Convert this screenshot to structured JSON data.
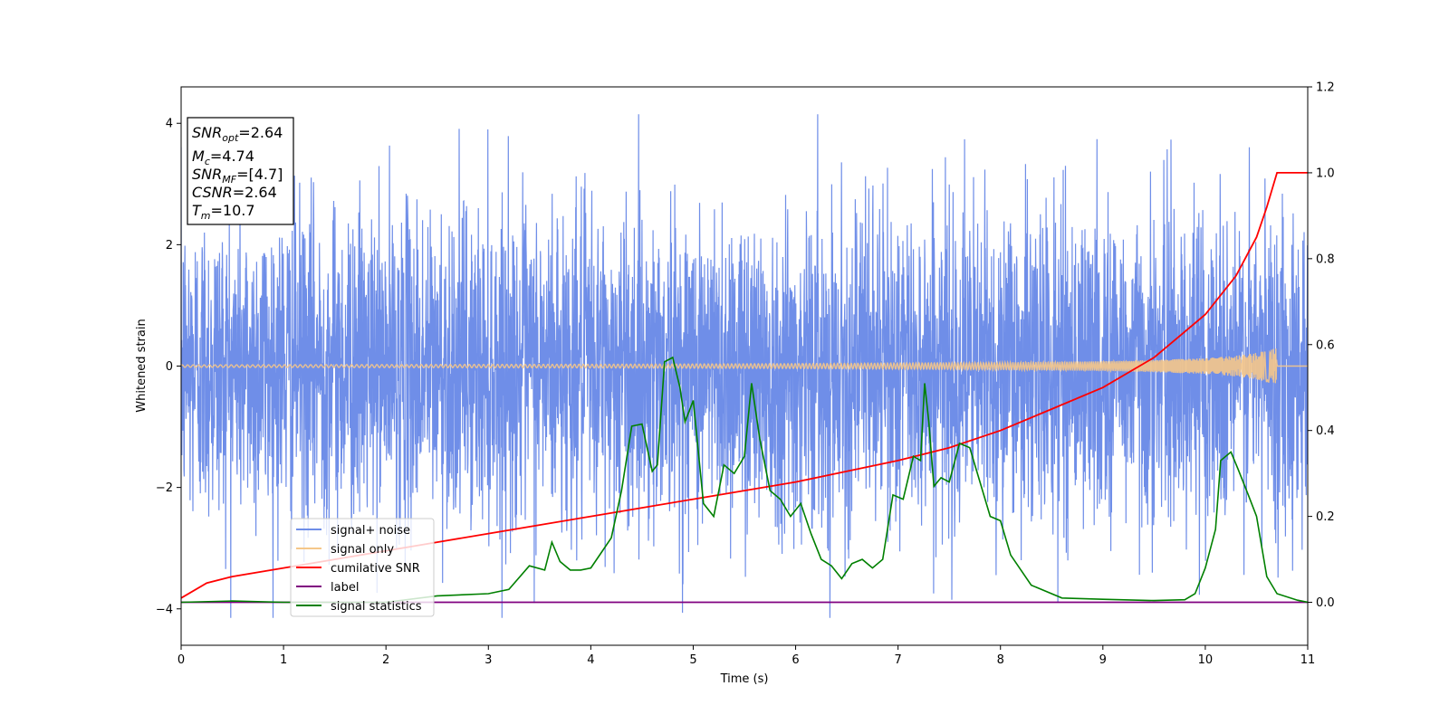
{
  "chart_data": {
    "type": "line",
    "title": "",
    "xlabel": "Time (s)",
    "ylabel": "Whitened strain",
    "y2label": "",
    "xlim": [
      0,
      11
    ],
    "ylim": [
      -4.6,
      4.6
    ],
    "y2lim": [
      -0.1,
      1.2
    ],
    "xticks": [
      0,
      1,
      2,
      3,
      4,
      5,
      6,
      7,
      8,
      9,
      10,
      11
    ],
    "yticks": [
      -4,
      -2,
      0,
      2,
      4
    ],
    "y2ticks": [
      0.0,
      0.2,
      0.4,
      0.6,
      0.8,
      1.0,
      1.2
    ],
    "xtick_labels": [
      "0",
      "1",
      "2",
      "3",
      "4",
      "5",
      "6",
      "7",
      "8",
      "9",
      "10",
      "11"
    ],
    "ytick_labels": [
      "−4",
      "−2",
      "0",
      "2",
      "4"
    ],
    "y2tick_labels": [
      "0.0",
      "0.2",
      "0.4",
      "0.6",
      "0.8",
      "1.0",
      "1.2"
    ],
    "grid": false,
    "legend_position": "lower-left",
    "noise": {
      "amplitude": 1.3,
      "peak_max": 4.15,
      "peak_min": -4.15,
      "samples": 4400
    },
    "series": [
      {
        "name": "signal+ noise",
        "axis": "left",
        "color": "#6f8ee8",
        "values_note_free": true
      },
      {
        "name": "signal only",
        "axis": "left",
        "color": "#f5c78a",
        "envelope": {
          "t": [
            0,
            2,
            4,
            6,
            7,
            8,
            9,
            9.5,
            10,
            10.3,
            10.5,
            10.6,
            10.7
          ],
          "amp": [
            0.02,
            0.025,
            0.03,
            0.04,
            0.05,
            0.06,
            0.08,
            0.1,
            0.13,
            0.17,
            0.22,
            0.26,
            0.3
          ]
        },
        "t_merger": 10.7
      },
      {
        "name": "cumilative SNR",
        "axis": "right",
        "color": "#ff0000",
        "x": [
          0,
          0.25,
          0.5,
          1,
          1.5,
          2,
          2.5,
          3,
          3.5,
          4,
          4.5,
          5,
          5.5,
          6,
          6.5,
          7,
          7.5,
          8,
          8.5,
          9,
          9.5,
          10,
          10.3,
          10.5,
          10.6,
          10.7,
          11
        ],
        "values": [
          0.01,
          0.045,
          0.06,
          0.08,
          0.1,
          0.12,
          0.14,
          0.16,
          0.18,
          0.2,
          0.22,
          0.24,
          0.26,
          0.28,
          0.305,
          0.33,
          0.36,
          0.4,
          0.45,
          0.5,
          0.57,
          0.67,
          0.76,
          0.85,
          0.92,
          1.0,
          1.0
        ]
      },
      {
        "name": "label",
        "axis": "right",
        "color": "#800080",
        "x": [
          0,
          11
        ],
        "values": [
          0,
          0
        ]
      },
      {
        "name": "signal statistics",
        "axis": "right",
        "color": "#008000",
        "x": [
          0,
          0.5,
          1,
          1.5,
          2,
          2.5,
          3,
          3.2,
          3.4,
          3.55,
          3.62,
          3.7,
          3.8,
          3.9,
          4.0,
          4.1,
          4.2,
          4.3,
          4.4,
          4.5,
          4.6,
          4.65,
          4.72,
          4.8,
          4.87,
          4.92,
          5.0,
          5.1,
          5.2,
          5.3,
          5.4,
          5.5,
          5.57,
          5.65,
          5.75,
          5.85,
          5.95,
          6.05,
          6.15,
          6.25,
          6.35,
          6.45,
          6.55,
          6.65,
          6.75,
          6.85,
          6.95,
          7.05,
          7.15,
          7.22,
          7.26,
          7.3,
          7.35,
          7.42,
          7.5,
          7.6,
          7.7,
          7.8,
          7.9,
          8.0,
          8.1,
          8.3,
          8.6,
          9,
          9.5,
          9.8,
          9.9,
          10.0,
          10.1,
          10.15,
          10.25,
          10.32,
          10.42,
          10.5,
          10.6,
          10.7,
          10.9,
          11
        ],
        "values": [
          0,
          0.003,
          0.0,
          0.0,
          0.0,
          0.015,
          0.02,
          0.03,
          0.085,
          0.075,
          0.14,
          0.095,
          0.075,
          0.075,
          0.08,
          0.115,
          0.15,
          0.26,
          0.41,
          0.415,
          0.305,
          0.32,
          0.56,
          0.57,
          0.5,
          0.42,
          0.47,
          0.23,
          0.2,
          0.32,
          0.3,
          0.34,
          0.51,
          0.38,
          0.26,
          0.24,
          0.2,
          0.23,
          0.16,
          0.1,
          0.085,
          0.055,
          0.09,
          0.1,
          0.08,
          0.1,
          0.25,
          0.24,
          0.34,
          0.33,
          0.51,
          0.42,
          0.27,
          0.29,
          0.28,
          0.37,
          0.36,
          0.28,
          0.2,
          0.19,
          0.11,
          0.04,
          0.01,
          0.007,
          0.004,
          0.006,
          0.02,
          0.08,
          0.17,
          0.33,
          0.35,
          0.31,
          0.25,
          0.2,
          0.06,
          0.02,
          0.005,
          0.0
        ]
      }
    ],
    "legend_entries": [
      "signal+ noise",
      "signal only",
      "cumilative SNR",
      "label",
      "signal statistics"
    ],
    "info_box": {
      "snr_opt_label": "SNR",
      "snr_opt_sub": "opt",
      "snr_opt_value": "=2.64",
      "mc_label": "M",
      "mc_sub": "c",
      "mc_value": "=4.74",
      "snr_mf_label": "SNR",
      "snr_mf_sub": "MF",
      "snr_mf_value": "=[4.7]",
      "csnr_label": "CSNR",
      "csnr_value": "=2.64",
      "tm_label": "T",
      "tm_sub": "m",
      "tm_value": "=10.7"
    }
  }
}
